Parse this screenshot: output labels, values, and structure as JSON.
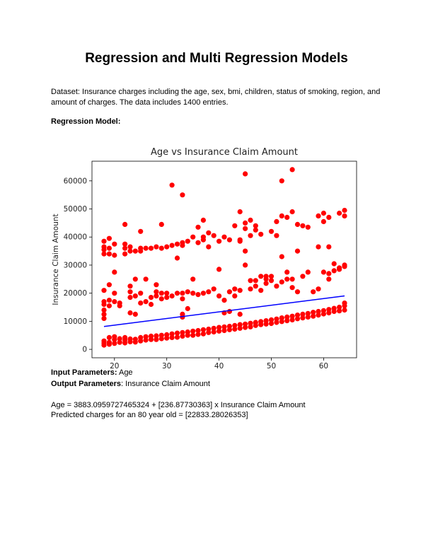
{
  "title": "Regression and Multi Regression Models",
  "dataset_text": "Dataset: Insurance charges including the age, sex, bmi, children, status of smoking, region, and amount of charges. The data includes 1400 entries.",
  "regression_heading": "Regression Model:",
  "input_label": "Input Parameters:",
  "input_value": " Age",
  "output_label": "Output Parameters",
  "output_value": ": Insurance Claim Amount",
  "equation": "Age = 3883.0959727465324 + [236.87730363] x Insurance Claim Amount",
  "prediction": "Predicted charges for an 80 year old = [22833.28026353]",
  "chart_data": {
    "type": "scatter",
    "title": "Age vs Insurance Claim Amount",
    "xlabel": "",
    "ylabel": "Insurance Claim Amount",
    "xlim": [
      15.7,
      66.3
    ],
    "ylim": [
      -3000,
      67000
    ],
    "xticks": [
      "20",
      "30",
      "40",
      "50",
      "60"
    ],
    "xtick_values": [
      20,
      30,
      40,
      50,
      60
    ],
    "yticks": [
      "0",
      "10000",
      "20000",
      "30000",
      "40000",
      "50000",
      "60000"
    ],
    "ytick_values": [
      0,
      10000,
      20000,
      30000,
      40000,
      50000,
      60000
    ],
    "grid": false,
    "point_color": "#ff0000",
    "line_color": "#0000ff",
    "regression_line": {
      "x": [
        18,
        64
      ],
      "y": [
        8147,
        19043
      ]
    },
    "series": [
      {
        "points": [
          [
            18,
            1500
          ],
          [
            18,
            2200
          ],
          [
            18,
            3000
          ],
          [
            18,
            11000
          ],
          [
            18,
            12500
          ],
          [
            18,
            14000
          ],
          [
            18,
            16000
          ],
          [
            18,
            17000
          ],
          [
            18,
            21000
          ],
          [
            18,
            34000
          ],
          [
            18,
            35500
          ],
          [
            18,
            36500
          ],
          [
            18,
            38500
          ],
          [
            19,
            1800
          ],
          [
            19,
            2500
          ],
          [
            19,
            4200
          ],
          [
            19,
            15500
          ],
          [
            19,
            17500
          ],
          [
            19,
            23000
          ],
          [
            19,
            34000
          ],
          [
            19,
            36000
          ],
          [
            19,
            39500
          ],
          [
            20,
            2100
          ],
          [
            20,
            3500
          ],
          [
            20,
            4500
          ],
          [
            20,
            17000
          ],
          [
            20,
            20000
          ],
          [
            20,
            27500
          ],
          [
            20,
            33500
          ],
          [
            20,
            37500
          ],
          [
            21,
            2500
          ],
          [
            21,
            3800
          ],
          [
            21,
            15500
          ],
          [
            21,
            16500
          ],
          [
            22,
            2300
          ],
          [
            22,
            3300
          ],
          [
            22,
            4200
          ],
          [
            22,
            34000
          ],
          [
            22,
            36000
          ],
          [
            22,
            37500
          ],
          [
            22,
            44500
          ],
          [
            23,
            2700
          ],
          [
            23,
            3700
          ],
          [
            23,
            13000
          ],
          [
            23,
            18500
          ],
          [
            23,
            20500
          ],
          [
            23,
            22500
          ],
          [
            23,
            35000
          ],
          [
            23,
            36500
          ],
          [
            24,
            2600
          ],
          [
            24,
            3600
          ],
          [
            24,
            12500
          ],
          [
            24,
            19000
          ],
          [
            24,
            25000
          ],
          [
            24,
            35000
          ],
          [
            25,
            3000
          ],
          [
            25,
            4200
          ],
          [
            25,
            16500
          ],
          [
            25,
            20000
          ],
          [
            25,
            35000
          ],
          [
            25,
            36000
          ],
          [
            25,
            42000
          ],
          [
            26,
            3300
          ],
          [
            26,
            4500
          ],
          [
            26,
            17000
          ],
          [
            26,
            25000
          ],
          [
            26,
            36000
          ],
          [
            27,
            3500
          ],
          [
            27,
            4700
          ],
          [
            27,
            16000
          ],
          [
            27,
            18500
          ],
          [
            27,
            36000
          ],
          [
            28,
            3500
          ],
          [
            28,
            4800
          ],
          [
            28,
            19000
          ],
          [
            28,
            20500
          ],
          [
            28,
            23000
          ],
          [
            28,
            36500
          ],
          [
            29,
            3800
          ],
          [
            29,
            5000
          ],
          [
            29,
            18000
          ],
          [
            29,
            20000
          ],
          [
            29,
            36000
          ],
          [
            29,
            44500
          ],
          [
            30,
            4000
          ],
          [
            30,
            5200
          ],
          [
            30,
            18500
          ],
          [
            30,
            20000
          ],
          [
            30,
            36500
          ],
          [
            31,
            4200
          ],
          [
            31,
            5500
          ],
          [
            31,
            19000
          ],
          [
            31,
            37000
          ],
          [
            31,
            58500
          ],
          [
            32,
            4300
          ],
          [
            32,
            5800
          ],
          [
            32,
            20000
          ],
          [
            32,
            37500
          ],
          [
            32,
            32500
          ],
          [
            33,
            4700
          ],
          [
            33,
            6000
          ],
          [
            33,
            11500
          ],
          [
            33,
            12500
          ],
          [
            33,
            18000
          ],
          [
            33,
            20000
          ],
          [
            33,
            37000
          ],
          [
            33,
            38000
          ],
          [
            33,
            55000
          ],
          [
            34,
            5000
          ],
          [
            34,
            6200
          ],
          [
            34,
            14500
          ],
          [
            34,
            20500
          ],
          [
            34,
            38500
          ],
          [
            35,
            5000
          ],
          [
            35,
            6500
          ],
          [
            35,
            20000
          ],
          [
            35,
            25000
          ],
          [
            35,
            40000
          ],
          [
            36,
            5300
          ],
          [
            36,
            6700
          ],
          [
            36,
            19500
          ],
          [
            36,
            38000
          ],
          [
            36,
            43500
          ],
          [
            37,
            5500
          ],
          [
            37,
            7000
          ],
          [
            37,
            20000
          ],
          [
            37,
            40000
          ],
          [
            37,
            39000
          ],
          [
            37,
            46000
          ],
          [
            38,
            6000
          ],
          [
            38,
            7200
          ],
          [
            38,
            20500
          ],
          [
            38,
            36500
          ],
          [
            38,
            41500
          ],
          [
            39,
            6200
          ],
          [
            39,
            7500
          ],
          [
            39,
            21500
          ],
          [
            39,
            40500
          ],
          [
            40,
            6500
          ],
          [
            40,
            7800
          ],
          [
            40,
            19000
          ],
          [
            40,
            28500
          ],
          [
            40,
            38500
          ],
          [
            41,
            6700
          ],
          [
            41,
            8000
          ],
          [
            41,
            17500
          ],
          [
            41,
            13000
          ],
          [
            41,
            40000
          ],
          [
            42,
            7000
          ],
          [
            42,
            8200
          ],
          [
            42,
            13500
          ],
          [
            42,
            20500
          ],
          [
            42,
            39000
          ],
          [
            43,
            7200
          ],
          [
            43,
            8500
          ],
          [
            43,
            21500
          ],
          [
            43,
            44000
          ],
          [
            43,
            19000
          ],
          [
            44,
            7500
          ],
          [
            44,
            8800
          ],
          [
            44,
            12500
          ],
          [
            44,
            21000
          ],
          [
            44,
            38500
          ],
          [
            44,
            39000
          ],
          [
            44,
            49000
          ],
          [
            45,
            7800
          ],
          [
            45,
            9000
          ],
          [
            45,
            30000
          ],
          [
            45,
            35000
          ],
          [
            45,
            43000
          ],
          [
            45,
            45000
          ],
          [
            45,
            62500
          ],
          [
            46,
            8000
          ],
          [
            46,
            9300
          ],
          [
            46,
            21500
          ],
          [
            46,
            24500
          ],
          [
            46,
            40500
          ],
          [
            46,
            46000
          ],
          [
            47,
            8500
          ],
          [
            47,
            9600
          ],
          [
            47,
            24500
          ],
          [
            47,
            22500
          ],
          [
            47,
            42500
          ],
          [
            47,
            44000
          ],
          [
            48,
            8800
          ],
          [
            48,
            9900
          ],
          [
            48,
            21000
          ],
          [
            48,
            26000
          ],
          [
            48,
            41000
          ],
          [
            49,
            9000
          ],
          [
            49,
            10200
          ],
          [
            49,
            23500
          ],
          [
            49,
            26000
          ],
          [
            49,
            25000
          ],
          [
            50,
            9200
          ],
          [
            50,
            10500
          ],
          [
            50,
            24500
          ],
          [
            50,
            26000
          ],
          [
            50,
            42000
          ],
          [
            51,
            9600
          ],
          [
            51,
            10800
          ],
          [
            51,
            22500
          ],
          [
            51,
            45500
          ],
          [
            51,
            40500
          ],
          [
            52,
            9900
          ],
          [
            52,
            11200
          ],
          [
            52,
            24000
          ],
          [
            52,
            33000
          ],
          [
            52,
            47500
          ],
          [
            52,
            60000
          ],
          [
            53,
            10200
          ],
          [
            53,
            11500
          ],
          [
            53,
            27500
          ],
          [
            53,
            47000
          ],
          [
            53,
            25000
          ],
          [
            54,
            10500
          ],
          [
            54,
            11800
          ],
          [
            54,
            22000
          ],
          [
            54,
            25000
          ],
          [
            54,
            49000
          ],
          [
            54,
            64000
          ],
          [
            55,
            10900
          ],
          [
            55,
            12200
          ],
          [
            55,
            35000
          ],
          [
            55,
            44500
          ],
          [
            55,
            20500
          ],
          [
            56,
            11200
          ],
          [
            56,
            12500
          ],
          [
            56,
            26000
          ],
          [
            56,
            44000
          ],
          [
            57,
            11500
          ],
          [
            57,
            12800
          ],
          [
            57,
            27500
          ],
          [
            57,
            43500
          ],
          [
            58,
            11800
          ],
          [
            58,
            13200
          ],
          [
            58,
            20500
          ],
          [
            59,
            12200
          ],
          [
            59,
            13500
          ],
          [
            59,
            21500
          ],
          [
            59,
            36500
          ],
          [
            59,
            47500
          ],
          [
            60,
            12600
          ],
          [
            60,
            13800
          ],
          [
            60,
            27500
          ],
          [
            60,
            45500
          ],
          [
            60,
            48500
          ],
          [
            61,
            13000
          ],
          [
            61,
            14200
          ],
          [
            61,
            25000
          ],
          [
            61,
            27000
          ],
          [
            61,
            36500
          ],
          [
            61,
            47000
          ],
          [
            62,
            13500
          ],
          [
            62,
            14600
          ],
          [
            62,
            28000
          ],
          [
            62,
            30500
          ],
          [
            63,
            13700
          ],
          [
            63,
            15000
          ],
          [
            63,
            28500
          ],
          [
            63,
            29000
          ],
          [
            63,
            48500
          ],
          [
            64,
            14000
          ],
          [
            64,
            15500
          ],
          [
            64,
            16500
          ],
          [
            64,
            29500
          ],
          [
            64,
            30000
          ],
          [
            64,
            47500
          ],
          [
            64,
            49500
          ]
        ]
      }
    ]
  }
}
